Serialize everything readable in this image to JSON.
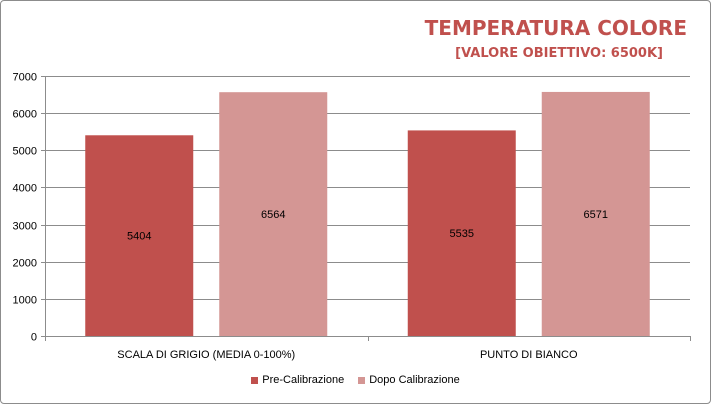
{
  "chart_data": {
    "type": "bar",
    "title": "TEMPERATURA COLORE",
    "subtitle": "[VALORE OBIETTIVO: 6500K]",
    "categories": [
      "SCALA DI GRIGIO  (MEDIA  0-100%)",
      "PUNTO DI BIANCO"
    ],
    "series": [
      {
        "name": "Pre-Calibrazione",
        "values": [
          5404,
          5535
        ],
        "color": "#c0504d"
      },
      {
        "name": "Dopo Calibrazione",
        "values": [
          6564,
          6571
        ],
        "color": "#d49694"
      }
    ],
    "ylim": [
      0,
      7000
    ],
    "yticks": [
      0,
      1000,
      2000,
      3000,
      4000,
      5000,
      6000,
      7000
    ],
    "xlabel": "",
    "ylabel": "",
    "grid": true,
    "legend_position": "bottom"
  }
}
